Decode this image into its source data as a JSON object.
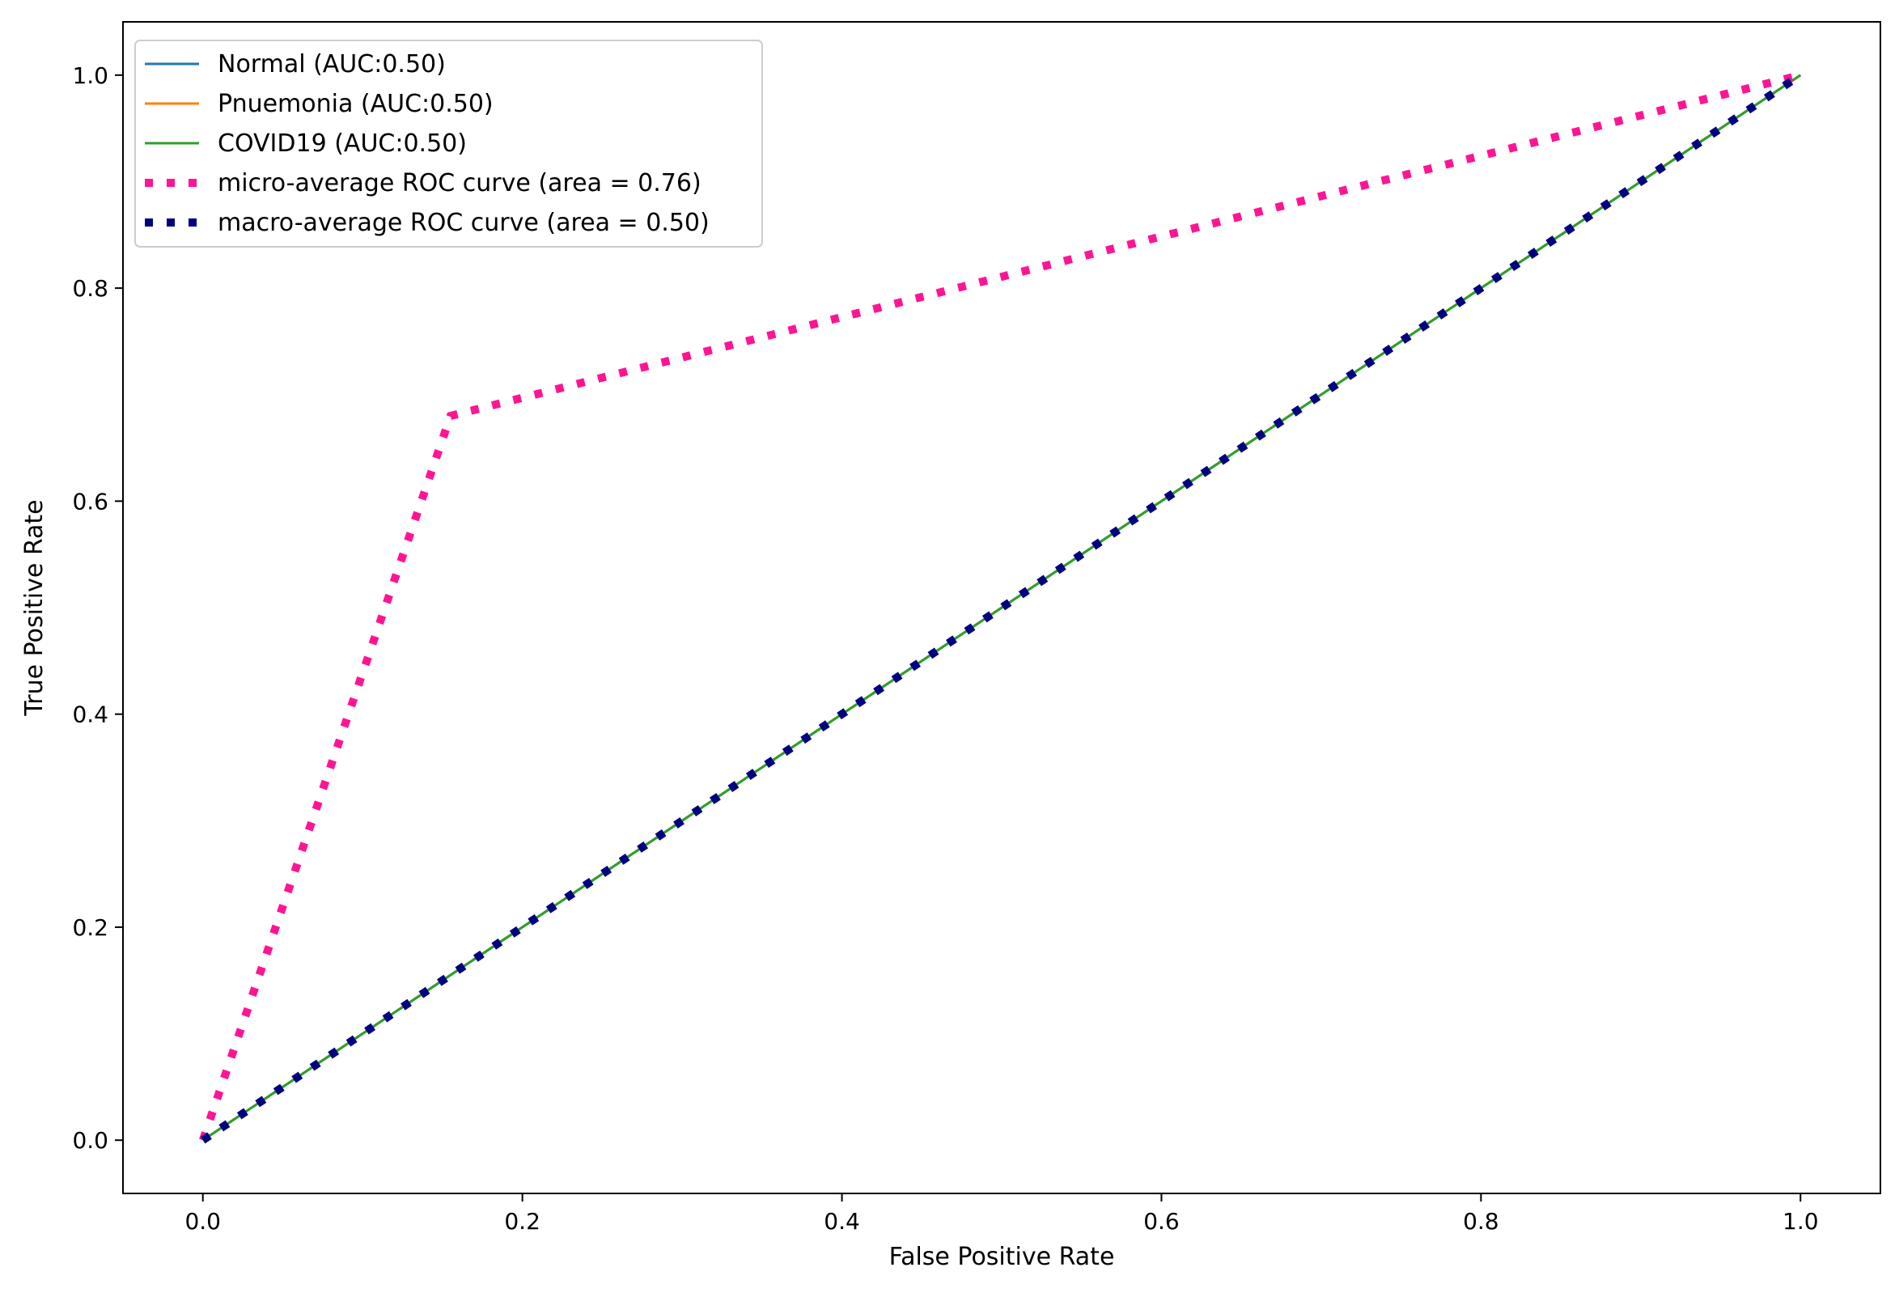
{
  "chart_data": {
    "type": "line",
    "xlabel": "False Positive Rate",
    "ylabel": "True Positive Rate",
    "xlim": [
      -0.05,
      1.05
    ],
    "ylim": [
      -0.05,
      1.05
    ],
    "xticks": [
      0.0,
      0.2,
      0.4,
      0.6,
      0.8,
      1.0
    ],
    "yticks": [
      0.0,
      0.2,
      0.4,
      0.6,
      0.8,
      1.0
    ],
    "xtick_labels": [
      "0.0",
      "0.2",
      "0.4",
      "0.6",
      "0.8",
      "1.0"
    ],
    "ytick_labels": [
      "0.0",
      "0.2",
      "0.4",
      "0.6",
      "0.8",
      "1.0"
    ],
    "grid": false,
    "legend_position": "top-left",
    "series": [
      {
        "name": "Normal (AUC:0.50)",
        "color": "#1f77b4",
        "style": "solid",
        "x": [
          0,
          1
        ],
        "y": [
          0,
          1
        ]
      },
      {
        "name": "Pnuemonia (AUC:0.50)",
        "color": "#ff7f0e",
        "style": "solid",
        "x": [
          0,
          1
        ],
        "y": [
          0,
          1
        ]
      },
      {
        "name": "COVID19 (AUC:0.50)",
        "color": "#2ca02c",
        "style": "solid",
        "x": [
          0,
          1
        ],
        "y": [
          0,
          1
        ]
      },
      {
        "name": "micro-average ROC curve (area = 0.76)",
        "color": "#ff1493",
        "style": "dotted",
        "x": [
          0,
          0.155,
          1
        ],
        "y": [
          0,
          0.68,
          1
        ]
      },
      {
        "name": "macro-average ROC curve (area = 0.50)",
        "color": "#000080",
        "style": "dotted",
        "x": [
          0,
          1
        ],
        "y": [
          0,
          1
        ]
      }
    ]
  }
}
